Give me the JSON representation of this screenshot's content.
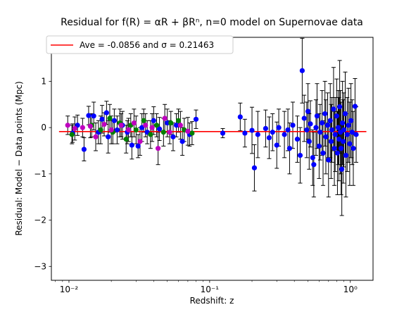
{
  "chart_data": {
    "type": "scatter",
    "title": "Residual for f(R) = αR + βRⁿ, n=0 model on Supernovae data",
    "xlabel": "Redshift: z",
    "ylabel": "Residual: Model − Data points (Mpc)",
    "x_scale": "log",
    "xlim": [
      0.0075,
      1.45
    ],
    "ylim": [
      -3.3,
      1.95
    ],
    "x_ticks": [
      {
        "value": 0.01,
        "label": "10⁻²"
      },
      {
        "value": 0.1,
        "label": "10⁻¹"
      },
      {
        "value": 1,
        "label": "10⁰"
      }
    ],
    "y_ticks": [
      {
        "value": 1,
        "label": "1"
      },
      {
        "value": 0,
        "label": "0"
      },
      {
        "value": -1,
        "label": "−1"
      },
      {
        "value": -2,
        "label": "−2"
      },
      {
        "value": -3,
        "label": "−3"
      }
    ],
    "grid": false,
    "legend": {
      "position": "top-left",
      "entries": [
        {
          "label": "Ave = -0.0856 and σ = 0.21463",
          "color": "#ff0000",
          "kind": "line"
        }
      ]
    },
    "average_line": {
      "y": -0.0856,
      "x_range": [
        0.0085,
        1.3
      ],
      "color": "#ff0000"
    },
    "colors": {
      "blue": "#0000ff",
      "green": "#008000",
      "magenta": "#bf00bf",
      "errorbar": "#000000"
    },
    "series": [
      {
        "color": "blue",
        "points": [
          {
            "x": 0.0106,
            "y": -0.12,
            "err": 0.2
          },
          {
            "x": 0.0115,
            "y": 0.05,
            "err": 0.22
          },
          {
            "x": 0.0128,
            "y": -0.47,
            "err": 0.25
          },
          {
            "x": 0.0138,
            "y": 0.26,
            "err": 0.2
          },
          {
            "x": 0.015,
            "y": 0.25,
            "err": 0.3
          },
          {
            "x": 0.0162,
            "y": -0.1,
            "err": 0.25
          },
          {
            "x": 0.0172,
            "y": 0.18,
            "err": 0.3
          },
          {
            "x": 0.0185,
            "y": 0.32,
            "err": 0.25
          },
          {
            "x": 0.019,
            "y": -0.2,
            "err": 0.35
          },
          {
            "x": 0.021,
            "y": 0.15,
            "err": 0.25
          },
          {
            "x": 0.022,
            "y": -0.05,
            "err": 0.3
          },
          {
            "x": 0.024,
            "y": 0.05,
            "err": 0.3
          },
          {
            "x": 0.026,
            "y": -0.1,
            "err": 0.25
          },
          {
            "x": 0.028,
            "y": -0.38,
            "err": 0.3
          },
          {
            "x": 0.031,
            "y": -0.4,
            "err": 0.25
          },
          {
            "x": 0.033,
            "y": 0.0,
            "err": 0.3
          },
          {
            "x": 0.036,
            "y": -0.1,
            "err": 0.25
          },
          {
            "x": 0.04,
            "y": 0.15,
            "err": 0.3
          },
          {
            "x": 0.044,
            "y": -0.03,
            "err": 0.25
          },
          {
            "x": 0.05,
            "y": 0.1,
            "err": 0.3
          },
          {
            "x": 0.055,
            "y": -0.2,
            "err": 0.3
          },
          {
            "x": 0.058,
            "y": 0.05,
            "err": 0.25
          },
          {
            "x": 0.064,
            "y": -0.3,
            "err": 0.3
          },
          {
            "x": 0.072,
            "y": -0.15,
            "err": 0.25
          },
          {
            "x": 0.08,
            "y": 0.18,
            "err": 0.2
          },
          {
            "x": 0.124,
            "y": -0.12,
            "err": 0.1
          },
          {
            "x": 0.165,
            "y": 0.23,
            "err": 0.3
          },
          {
            "x": 0.178,
            "y": -0.12,
            "err": 0.3
          },
          {
            "x": 0.2,
            "y": -0.06,
            "err": 0.5
          },
          {
            "x": 0.208,
            "y": -0.87,
            "err": 0.5
          },
          {
            "x": 0.22,
            "y": -0.15,
            "err": 0.5
          },
          {
            "x": 0.25,
            "y": -0.02,
            "err": 0.4
          },
          {
            "x": 0.265,
            "y": -0.22,
            "err": 0.45
          },
          {
            "x": 0.28,
            "y": -0.1,
            "err": 0.4
          },
          {
            "x": 0.3,
            "y": -0.38,
            "err": 0.5
          },
          {
            "x": 0.31,
            "y": 0.0,
            "err": 0.4
          },
          {
            "x": 0.34,
            "y": -0.15,
            "err": 0.5
          },
          {
            "x": 0.36,
            "y": -0.05,
            "err": 0.45
          },
          {
            "x": 0.37,
            "y": -0.45,
            "err": 0.55
          },
          {
            "x": 0.39,
            "y": 0.05,
            "err": 0.5
          },
          {
            "x": 0.42,
            "y": -0.25,
            "err": 0.5
          },
          {
            "x": 0.44,
            "y": -0.6,
            "err": 0.6
          },
          {
            "x": 0.455,
            "y": 1.23,
            "err": 0.7
          },
          {
            "x": 0.47,
            "y": 0.2,
            "err": 0.5
          },
          {
            "x": 0.49,
            "y": -0.05,
            "err": 0.6
          },
          {
            "x": 0.5,
            "y": 0.35,
            "err": 0.6
          },
          {
            "x": 0.51,
            "y": -0.3,
            "err": 0.6
          },
          {
            "x": 0.52,
            "y": 0.08,
            "err": 0.5
          },
          {
            "x": 0.54,
            "y": -0.65,
            "err": 0.6
          },
          {
            "x": 0.55,
            "y": -0.8,
            "err": 0.7
          },
          {
            "x": 0.57,
            "y": 0.0,
            "err": 0.6
          },
          {
            "x": 0.58,
            "y": 0.25,
            "err": 0.7
          },
          {
            "x": 0.6,
            "y": -0.4,
            "err": 0.7
          },
          {
            "x": 0.61,
            "y": -0.1,
            "err": 0.6
          },
          {
            "x": 0.63,
            "y": 0.1,
            "err": 0.7
          },
          {
            "x": 0.64,
            "y": -0.55,
            "err": 0.7
          },
          {
            "x": 0.66,
            "y": 0.3,
            "err": 0.7
          },
          {
            "x": 0.67,
            "y": -0.2,
            "err": 0.8
          },
          {
            "x": 0.69,
            "y": 0.05,
            "err": 0.7
          },
          {
            "x": 0.7,
            "y": -0.7,
            "err": 0.8
          },
          {
            "x": 0.72,
            "y": 0.15,
            "err": 0.8
          },
          {
            "x": 0.73,
            "y": -0.3,
            "err": 0.8
          },
          {
            "x": 0.74,
            "y": -0.05,
            "err": 0.7
          },
          {
            "x": 0.76,
            "y": 0.4,
            "err": 0.9
          },
          {
            "x": 0.77,
            "y": -0.45,
            "err": 0.8
          },
          {
            "x": 0.78,
            "y": -0.15,
            "err": 0.8
          },
          {
            "x": 0.8,
            "y": 0.25,
            "err": 0.8
          },
          {
            "x": 0.81,
            "y": -0.55,
            "err": 0.9
          },
          {
            "x": 0.82,
            "y": 0.0,
            "err": 0.8
          },
          {
            "x": 0.83,
            "y": -0.25,
            "err": 0.9
          },
          {
            "x": 0.84,
            "y": 0.45,
            "err": 1.0
          },
          {
            "x": 0.85,
            "y": -0.1,
            "err": 0.9
          },
          {
            "x": 0.86,
            "y": -0.45,
            "err": 1.0
          },
          {
            "x": 0.87,
            "y": -0.9,
            "err": 1.0
          },
          {
            "x": 0.88,
            "y": 0.1,
            "err": 0.9
          },
          {
            "x": 0.89,
            "y": -0.3,
            "err": 0.9
          },
          {
            "x": 0.9,
            "y": -0.05,
            "err": 0.8
          },
          {
            "x": 0.92,
            "y": 0.3,
            "err": 0.9
          },
          {
            "x": 0.93,
            "y": -0.6,
            "err": 0.9
          },
          {
            "x": 0.95,
            "y": -0.15,
            "err": 0.8
          },
          {
            "x": 0.97,
            "y": 0.05,
            "err": 0.8
          },
          {
            "x": 0.99,
            "y": -0.35,
            "err": 0.9
          },
          {
            "x": 1.01,
            "y": 0.15,
            "err": 0.8
          },
          {
            "x": 1.03,
            "y": -0.1,
            "err": 0.7
          },
          {
            "x": 1.05,
            "y": -0.45,
            "err": 0.8
          },
          {
            "x": 1.08,
            "y": 0.46,
            "err": 0.6
          },
          {
            "x": 1.1,
            "y": -0.15,
            "err": 0.6
          }
        ]
      },
      {
        "color": "green",
        "points": [
          {
            "x": 0.0105,
            "y": -0.15,
            "err": 0.2
          },
          {
            "x": 0.0145,
            "y": 0.05,
            "err": 0.25
          },
          {
            "x": 0.0168,
            "y": -0.05,
            "err": 0.3
          },
          {
            "x": 0.0195,
            "y": 0.2,
            "err": 0.3
          },
          {
            "x": 0.0205,
            "y": -0.1,
            "err": 0.25
          },
          {
            "x": 0.023,
            "y": 0.1,
            "err": 0.3
          },
          {
            "x": 0.0255,
            "y": -0.25,
            "err": 0.3
          },
          {
            "x": 0.0275,
            "y": 0.05,
            "err": 0.25
          },
          {
            "x": 0.03,
            "y": -0.05,
            "err": 0.3
          },
          {
            "x": 0.034,
            "y": 0.15,
            "err": 0.25
          },
          {
            "x": 0.038,
            "y": -0.15,
            "err": 0.3
          },
          {
            "x": 0.042,
            "y": 0.05,
            "err": 0.25
          },
          {
            "x": 0.047,
            "y": -0.1,
            "err": 0.3
          },
          {
            "x": 0.053,
            "y": 0.1,
            "err": 0.25
          },
          {
            "x": 0.06,
            "y": 0.15,
            "err": 0.25
          },
          {
            "x": 0.066,
            "y": -0.05,
            "err": 0.25
          },
          {
            "x": 0.075,
            "y": -0.12,
            "err": 0.25
          }
        ]
      },
      {
        "color": "magenta",
        "points": [
          {
            "x": 0.0098,
            "y": 0.05,
            "err": 0.2
          },
          {
            "x": 0.011,
            "y": -0.02,
            "err": 0.25
          },
          {
            "x": 0.0125,
            "y": 0.0,
            "err": 0.2
          },
          {
            "x": 0.0142,
            "y": 0.03,
            "err": 0.25
          },
          {
            "x": 0.0155,
            "y": -0.2,
            "err": 0.3
          },
          {
            "x": 0.0178,
            "y": 0.07,
            "err": 0.25
          },
          {
            "x": 0.02,
            "y": -0.05,
            "err": 0.3
          },
          {
            "x": 0.0235,
            "y": 0.05,
            "err": 0.25
          },
          {
            "x": 0.0265,
            "y": -0.05,
            "err": 0.25
          },
          {
            "x": 0.029,
            "y": 0.1,
            "err": 0.3
          },
          {
            "x": 0.032,
            "y": -0.3,
            "err": 0.3
          },
          {
            "x": 0.035,
            "y": 0.05,
            "err": 0.25
          },
          {
            "x": 0.039,
            "y": 0.0,
            "err": 0.3
          },
          {
            "x": 0.043,
            "y": -0.45,
            "err": 0.35
          },
          {
            "x": 0.048,
            "y": 0.2,
            "err": 0.3
          },
          {
            "x": 0.052,
            "y": -0.1,
            "err": 0.25
          },
          {
            "x": 0.062,
            "y": 0.05,
            "err": 0.3
          },
          {
            "x": 0.07,
            "y": -0.08,
            "err": 0.3
          }
        ]
      }
    ]
  }
}
